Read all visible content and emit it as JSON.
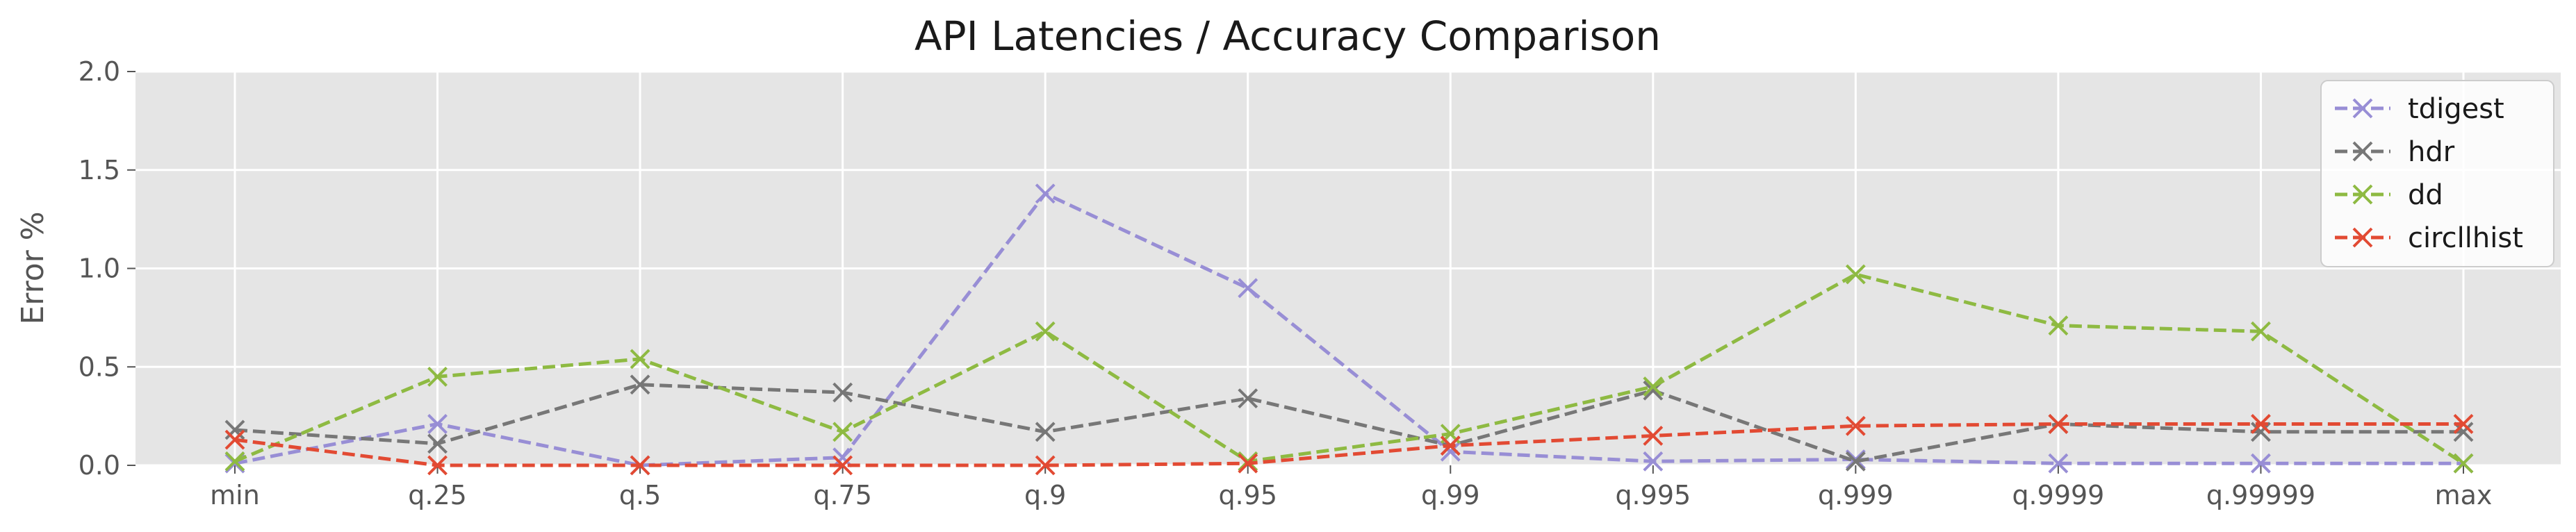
{
  "chart_data": {
    "type": "line",
    "title": "API Latencies / Accuracy Comparison",
    "xlabel": "",
    "ylabel": "Error %",
    "categories": [
      "min",
      "q.25",
      "q.5",
      "q.75",
      "q.9",
      "q.95",
      "q.99",
      "q.995",
      "q.999",
      "q.9999",
      "q.99999",
      "max"
    ],
    "ylim": [
      0,
      2.0
    ],
    "yticks": [
      "0.0",
      "0.5",
      "1.0",
      "1.5",
      "2.0"
    ],
    "grid": true,
    "legend_position": "top-right",
    "series": [
      {
        "name": "tdigest",
        "color": "#988ED5",
        "values": [
          0.01,
          0.21,
          0.0,
          0.04,
          1.38,
          0.9,
          0.07,
          0.02,
          0.03,
          0.01,
          0.01,
          0.01
        ]
      },
      {
        "name": "hdr",
        "color": "#777777",
        "values": [
          0.18,
          0.11,
          0.41,
          0.37,
          0.17,
          0.34,
          0.1,
          0.38,
          0.02,
          0.21,
          0.17,
          0.17
        ]
      },
      {
        "name": "dd",
        "color": "#8EBA42",
        "values": [
          0.02,
          0.45,
          0.54,
          0.17,
          0.68,
          0.02,
          0.16,
          0.4,
          0.97,
          0.71,
          0.68,
          0.01
        ]
      },
      {
        "name": "circllhist",
        "color": "#E24A33",
        "values": [
          0.13,
          0.0,
          0.0,
          0.0,
          0.0,
          0.01,
          0.1,
          0.15,
          0.2,
          0.21,
          0.21,
          0.21
        ]
      }
    ]
  }
}
